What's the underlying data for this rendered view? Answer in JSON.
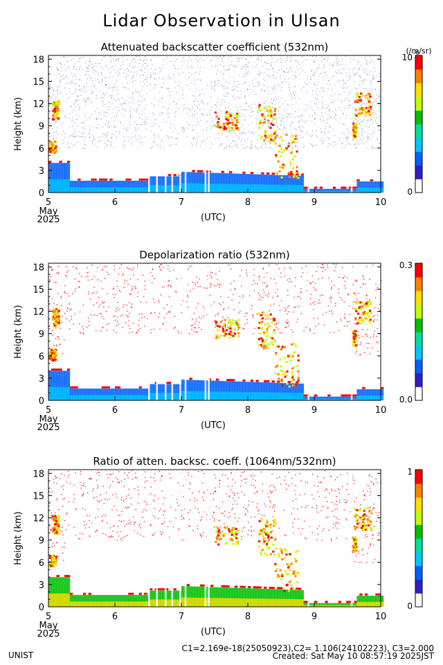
{
  "title": "Lidar Observation in Ulsan",
  "footer": {
    "org": "UNIST",
    "constants": "C1=2.169e-18(25050923),C2= 1.106(24102223), C3=2.000",
    "created": "Created: Sat May 10 08:57:19 2025JST"
  },
  "chart_data": [
    {
      "type": "heatmap",
      "title": "Attenuated backscatter coefficient (532nm)",
      "ylabel": "Height (km)",
      "xlabel": "(UTC)",
      "x_ticks": [
        "5",
        "6",
        "7",
        "8",
        "9",
        "10"
      ],
      "x_sub": [
        "May",
        "2025"
      ],
      "xlim": [
        5,
        10
      ],
      "y_ticks": [
        "0",
        "3",
        "6",
        "9",
        "12",
        "15",
        "18"
      ],
      "ylim": [
        0,
        18.5
      ],
      "colorbar": {
        "min_label": "0",
        "max_label": "10",
        "unit": "(/m/sr)",
        "exponent": "-6"
      },
      "colormap": [
        "#ffffff",
        "#3020c0",
        "#0060ff",
        "#00c8ff",
        "#00e0a0",
        "#00c000",
        "#c0ff00",
        "#ffe000",
        "#ff8000",
        "#ff0000"
      ]
    },
    {
      "type": "heatmap",
      "title": "Depolarization ratio (532nm)",
      "ylabel": "Height (km)",
      "xlabel": "(UTC)",
      "x_ticks": [
        "5",
        "6",
        "7",
        "8",
        "9",
        "10"
      ],
      "x_sub": [
        "May",
        "2025"
      ],
      "xlim": [
        5,
        10
      ],
      "y_ticks": [
        "0",
        "3",
        "6",
        "9",
        "12",
        "15",
        "18"
      ],
      "ylim": [
        0,
        18.5
      ],
      "colorbar": {
        "min_label": "0.0",
        "max_label": "0.3"
      },
      "colormap": [
        "#ffffff",
        "#3020c0",
        "#0060ff",
        "#00c8ff",
        "#00e0a0",
        "#00c000",
        "#c0ff00",
        "#ffe000",
        "#ff8000",
        "#ff0000"
      ]
    },
    {
      "type": "heatmap",
      "title": "Ratio of atten. backsc. coeff. (1064nm/532nm)",
      "ylabel": "Height (km)",
      "xlabel": "(UTC)",
      "x_ticks": [
        "5",
        "6",
        "7",
        "8",
        "9",
        "10"
      ],
      "x_sub": [
        "May",
        "2025"
      ],
      "xlim": [
        5,
        10
      ],
      "y_ticks": [
        "0",
        "3",
        "6",
        "9",
        "12",
        "15",
        "18"
      ],
      "ylim": [
        0,
        18.5
      ],
      "colorbar": {
        "min_label": "0",
        "max_label": "1"
      },
      "colormap": [
        "#ffffff",
        "#3020c0",
        "#0060ff",
        "#00c8ff",
        "#00e0a0",
        "#00c000",
        "#c0ff00",
        "#ffe000",
        "#ff8000",
        "#ff0000"
      ]
    }
  ]
}
